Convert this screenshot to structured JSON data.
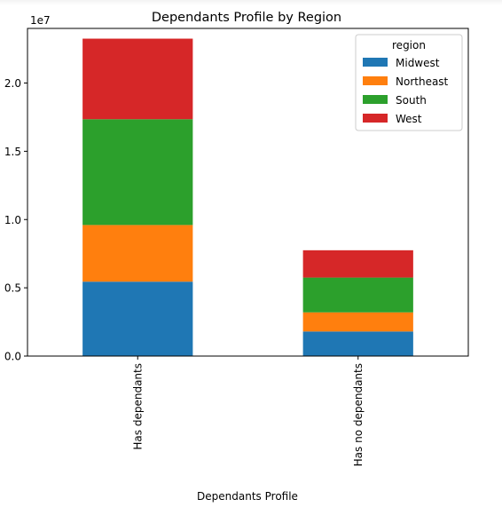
{
  "chart_data": {
    "type": "bar",
    "stacked": true,
    "title": "Dependants Profile by Region",
    "xlabel": "Dependants Profile",
    "ylabel": "",
    "y_offset_label": "1e7",
    "ylim": [
      0,
      24000000
    ],
    "yticks": [
      0,
      5000000,
      10000000,
      15000000,
      20000000
    ],
    "ytick_labels": [
      "0.0",
      "0.5",
      "1.0",
      "1.5",
      "2.0"
    ],
    "categories": [
      "Has dependants",
      "Has no dependants"
    ],
    "legend_title": "region",
    "legend_position": "top-right",
    "grid": false,
    "series": [
      {
        "name": "Midwest",
        "color": "#1f77b4",
        "values": [
          5450000,
          1800000
        ]
      },
      {
        "name": "Northeast",
        "color": "#ff7f0e",
        "values": [
          4150000,
          1400000
        ]
      },
      {
        "name": "South",
        "color": "#2ca02c",
        "values": [
          7750000,
          2550000
        ]
      },
      {
        "name": "West",
        "color": "#d62728",
        "values": [
          5900000,
          2000000
        ]
      }
    ]
  }
}
